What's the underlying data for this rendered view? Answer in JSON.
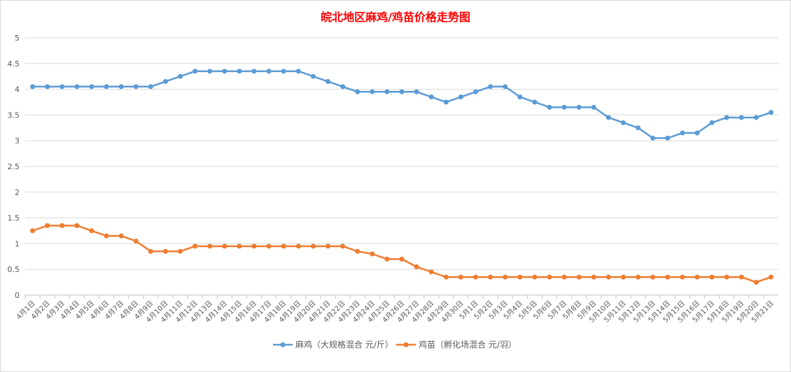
{
  "chart_data": {
    "type": "line",
    "title": "皖北地区麻鸡/鸡苗价格走势图",
    "xlabel": "",
    "ylabel": "",
    "ylim": [
      0,
      5
    ],
    "yticks": [
      "0",
      "0.5",
      "1",
      "1.5",
      "2",
      "2.5",
      "3",
      "3.5",
      "4",
      "4.5",
      "5"
    ],
    "grid": true,
    "legend_position": "bottom",
    "categories": [
      "4月1日",
      "4月2日",
      "4月3日",
      "4月4日",
      "4月5日",
      "4月6日",
      "4月7日",
      "4月8日",
      "4月9日",
      "4月10日",
      "4月11日",
      "4月12日",
      "4月13日",
      "4月14日",
      "4月15日",
      "4月16日",
      "4月17日",
      "4月18日",
      "4月19日",
      "4月20日",
      "4月21日",
      "4月22日",
      "4月23日",
      "4月24日",
      "4月25日",
      "4月26日",
      "4月27日",
      "4月28日",
      "4月29日",
      "4月30日",
      "5月1日",
      "5月2日",
      "5月3日",
      "5月4日",
      "5月5日",
      "5月6日",
      "5月7日",
      "5月8日",
      "5月9日",
      "5月10日",
      "5月11日",
      "5月12日",
      "5月13日",
      "5月14日",
      "5月15日",
      "5月16日",
      "5月17日",
      "5月18日",
      "5月19日",
      "5月20日",
      "5月21日"
    ],
    "series": [
      {
        "name": "麻鸡（大规格混合 元/斤）",
        "color": "#5b9bd5",
        "values": [
          4.05,
          4.05,
          4.05,
          4.05,
          4.05,
          4.05,
          4.05,
          4.05,
          4.05,
          4.15,
          4.25,
          4.35,
          4.35,
          4.35,
          4.35,
          4.35,
          4.35,
          4.35,
          4.35,
          4.25,
          4.15,
          4.05,
          3.95,
          3.95,
          3.95,
          3.95,
          3.95,
          3.85,
          3.75,
          3.85,
          3.95,
          4.05,
          4.05,
          3.85,
          3.75,
          3.65,
          3.65,
          3.65,
          3.65,
          3.45,
          3.35,
          3.25,
          3.05,
          3.05,
          3.15,
          3.15,
          3.35,
          3.45,
          3.45,
          3.45,
          3.55
        ]
      },
      {
        "name": "鸡苗（孵化场混合 元/羽）",
        "color": "#ed7d31",
        "values": [
          1.25,
          1.35,
          1.35,
          1.35,
          1.25,
          1.15,
          1.15,
          1.05,
          0.85,
          0.85,
          0.85,
          0.95,
          0.95,
          0.95,
          0.95,
          0.95,
          0.95,
          0.95,
          0.95,
          0.95,
          0.95,
          0.95,
          0.85,
          0.8,
          0.7,
          0.7,
          0.55,
          0.45,
          0.35,
          0.35,
          0.35,
          0.35,
          0.35,
          0.35,
          0.35,
          0.35,
          0.35,
          0.35,
          0.35,
          0.35,
          0.35,
          0.35,
          0.35,
          0.35,
          0.35,
          0.35,
          0.35,
          0.35,
          0.35,
          0.25,
          0.35
        ]
      }
    ]
  }
}
